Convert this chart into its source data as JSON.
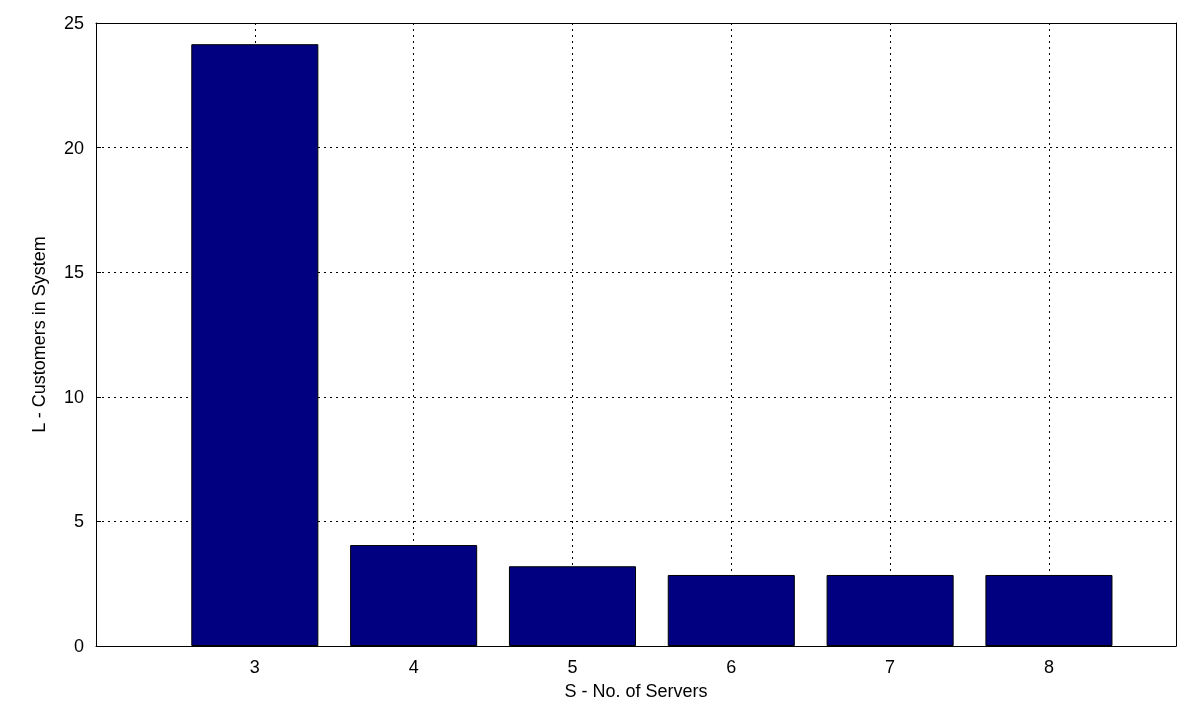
{
  "chart_data": {
    "type": "bar",
    "xlabel": "S - No. of Servers",
    "ylabel": "L - Customers in System",
    "x": [
      3,
      4,
      5,
      6,
      7,
      8
    ],
    "values": [
      24.15,
      4.05,
      3.2,
      2.85,
      2.85,
      2.85
    ],
    "color": "#000080",
    "xlim": [
      2,
      8.8
    ],
    "xticks": [
      3,
      4,
      5,
      6,
      7,
      8
    ],
    "ylim": [
      0,
      25
    ],
    "yticks": [
      0,
      5,
      10,
      15,
      20,
      25
    ],
    "grid": true
  }
}
